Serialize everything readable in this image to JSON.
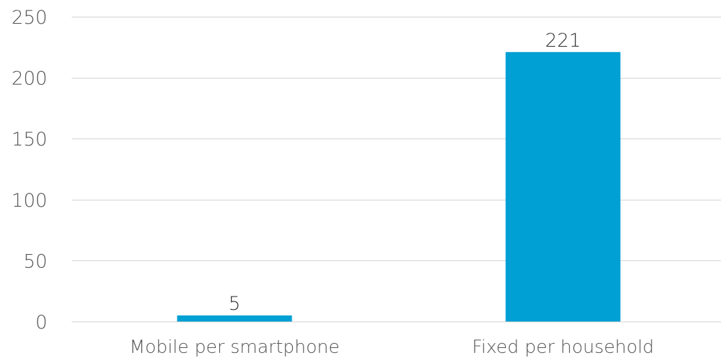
{
  "chart_data": {
    "type": "bar",
    "categories": [
      "Mobile per smartphone",
      "Fixed per household"
    ],
    "values": [
      5,
      221
    ],
    "data_labels": [
      "5",
      "221"
    ],
    "ylim": [
      0,
      250
    ],
    "yticks": [
      0,
      50,
      100,
      150,
      200,
      250
    ],
    "ytick_labels": [
      "0",
      "50",
      "100",
      "150",
      "200",
      "250"
    ],
    "grid": true,
    "legend": "none",
    "title": "",
    "xlabel": "",
    "ylabel": "",
    "colors": {
      "bar": "#009fd4",
      "grid": "#d9d9d9"
    }
  }
}
